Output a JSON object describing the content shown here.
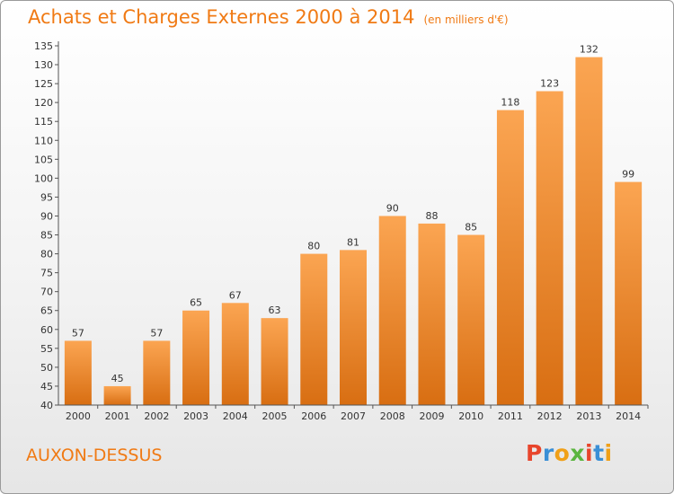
{
  "header": {
    "title": "Achats et Charges Externes 2000 à 2014",
    "subtitle": "(en milliers d'€)"
  },
  "commune": "AUXON-DESSUS",
  "logo": {
    "text": "Proxiti",
    "colors": [
      "#e8452c",
      "#3a8fd6",
      "#f0a018",
      "#5bb540",
      "#e8452c",
      "#3a8fd6",
      "#f0a018"
    ]
  },
  "chart_data": {
    "type": "bar",
    "title": "Achats et Charges Externes 2000 à 2014",
    "subtitle": "(en milliers d'€)",
    "categories": [
      "2000",
      "2001",
      "2002",
      "2003",
      "2004",
      "2005",
      "2006",
      "2007",
      "2008",
      "2009",
      "2010",
      "2011",
      "2012",
      "2013",
      "2014"
    ],
    "values": [
      57,
      45,
      57,
      65,
      67,
      63,
      80,
      81,
      90,
      88,
      85,
      118,
      123,
      132,
      99
    ],
    "ylim": [
      40,
      135
    ],
    "ytick_step": 5,
    "grid": false,
    "bar_color_top": "#fba552",
    "bar_color_bottom": "#d86e12"
  }
}
